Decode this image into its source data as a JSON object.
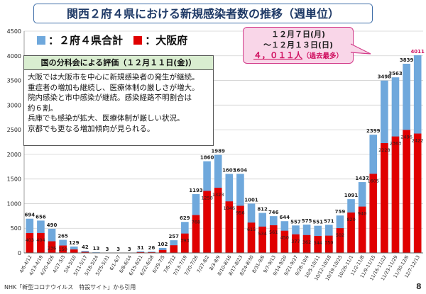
{
  "title": "関西２府４県における新規感染者数の推移（週単位）",
  "legend": {
    "total": "：２府４県合計",
    "osaka": "：大阪府"
  },
  "colors": {
    "total": "#6fa8dc",
    "osaka": "#e00000",
    "title_border": "#3f6ea8",
    "callout_bg": "#f9d6e8",
    "callout_accent": "#d01060",
    "panel_head_bg": "#d9edd0"
  },
  "callout": {
    "line1": "１２月７日(月)",
    "line2": "〜１２月１３日(日)",
    "value": "４，０１１人",
    "note": "（過去最多）"
  },
  "panel": {
    "title": "国の分科会による評価（１２月１１日(金)）",
    "lines": [
      "大阪では大阪市を中心に新規感染者の発生が継続。",
      "重症者の増加も継続し、医療体制の厳しさが増大。",
      "院内感染と市中感染が継続。感染経路不明割合は",
      "約６割。",
      "兵庫でも感染が拡大、医療体制が厳しい状況。",
      "京都でも更なる増加傾向が見られる。"
    ]
  },
  "source": "NHK「新型コロナウイルス　特設サイト」から引用",
  "page_number": "8",
  "chart_data": {
    "type": "bar",
    "ylim": [
      0,
      4500
    ],
    "yticks": [
      "0",
      "500",
      "1000",
      "1500",
      "2000",
      "2500",
      "3000",
      "3500",
      "4000",
      "4500"
    ],
    "categories": [
      "4/6-4/12",
      "4/13-4/19",
      "4/20-4/26",
      "4/27-5/3",
      "5/4-5/10",
      "5/11-5/17",
      "5/18-5/24",
      "5/25-5/31",
      "6/1-6/7",
      "6/8-6/14",
      "6/15-6/21",
      "6/22-6/28",
      "6/29-7/5",
      "7/6-7/12",
      "7/13-7/19",
      "7/20-7/26",
      "7/27-8/2",
      "8/3-8/9",
      "8/10-8/16",
      "8/17-8/23",
      "8/24-8/30",
      "8/31-9/6",
      "9/7-9/13",
      "9/14-9/20",
      "9/21-9/27",
      "9/28-10/4",
      "10/5-10/11",
      "10/12-10/18",
      "10/19-10/25",
      "10/26-11/1",
      "11/2-11/8",
      "11/9-11/15",
      "11/16-11/22",
      "11/23-11/29",
      "11/30-12/6",
      "12/7-12/13"
    ],
    "series": [
      {
        "name": "２府４県合計",
        "values": [
          694,
          656,
          490,
          265,
          129,
          42,
          13,
          3,
          3,
          3,
          31,
          26,
          102,
          257,
          629,
          1193,
          1860,
          1989,
          1603,
          1604,
          1001,
          812,
          746,
          644,
          557,
          575,
          551,
          571,
          759,
          1091,
          1437,
          2399,
          3498,
          3563,
          3839,
          4011
        ]
      },
      {
        "name": "大阪府",
        "values": [
          403,
          404,
          236,
          150,
          70,
          20,
          5,
          1,
          1,
          1,
          15,
          14,
          60,
          155,
          393,
          768,
          1258,
          1323,
          1046,
          956,
          615,
          534,
          561,
          450,
          377,
          362,
          344,
          350,
          502,
          820,
          940,
          1605,
          2228,
          2363,
          2496,
          2422
        ]
      }
    ],
    "data_labels_total": [
      "694",
      "656",
      "490",
      "265",
      "129",
      "42",
      "13",
      "3",
      "3",
      "3",
      "31",
      "26",
      "102",
      "257",
      "629",
      "1193",
      "1860",
      "1989",
      "1603",
      "1604",
      "1001",
      "812",
      "746",
      "644",
      "557",
      "575",
      "551",
      "571",
      "759",
      "1091",
      "1437",
      "2399",
      "3498",
      "3563",
      "3839",
      "4011"
    ],
    "data_labels_osaka": [
      "403",
      "404",
      "236",
      "150",
      "",
      "",
      "",
      "",
      "",
      "",
      "",
      "",
      "",
      "",
      "393",
      "768",
      "1258",
      "1323",
      "1046",
      "956",
      "615",
      "534",
      "561",
      "450",
      "377",
      "362",
      "344",
      "350",
      "502",
      "820",
      "940",
      "1605",
      "2228",
      "2363",
      "2496",
      "2422"
    ]
  }
}
